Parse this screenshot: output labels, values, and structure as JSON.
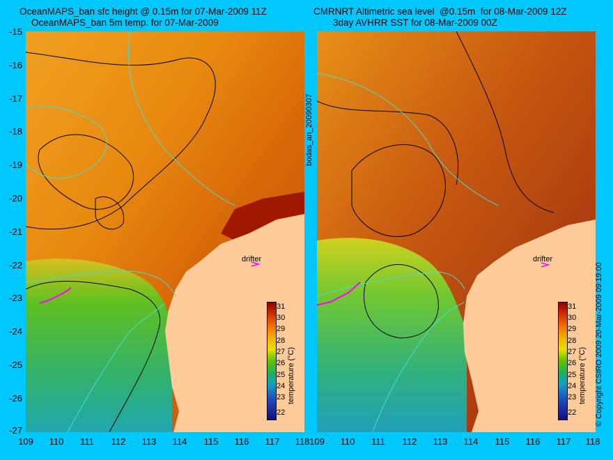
{
  "left": {
    "title1": "OceanMAPS_ban sfc height @ 0.15m for 07-Mar-2009 11Z",
    "title2": "OceanMAPS_ban 5m temp. for 07-Mar-2009",
    "drifter": "drifter",
    "cbar_label": "temperature (°C)"
  },
  "right": {
    "title1": "CMRNRT Altimetric sea level  @0.15m  for 08-Mar-2009 12Z",
    "title2": "3day AVHRR SST for 08-Mar-2009 00Z",
    "drifter": "drifter",
    "cbar_label": "temperature (°C)"
  },
  "middle_label": "bodas_an_20090307",
  "right_edge_label": "© Copyright CSIRO 2009   20-Mar-2009 09:19:00",
  "y_ticks": [
    "-15",
    "-16",
    "-17",
    "-18",
    "-19",
    "-20",
    "-21",
    "-22",
    "-23",
    "-24",
    "-25",
    "-26",
    "-27"
  ],
  "x_ticks": [
    "109",
    "110",
    "111",
    "112",
    "113",
    "114",
    "115",
    "116",
    "117",
    "118"
  ],
  "cbar_ticks": [
    "31",
    "30",
    "29",
    "28",
    "27",
    "26",
    "25",
    "24",
    "23",
    "22"
  ],
  "colors": {
    "background": "#00c8ff",
    "land": "#ffcc99",
    "contour_sea": "#40e0d0",
    "drifter_marker": "#ff00ff"
  }
}
